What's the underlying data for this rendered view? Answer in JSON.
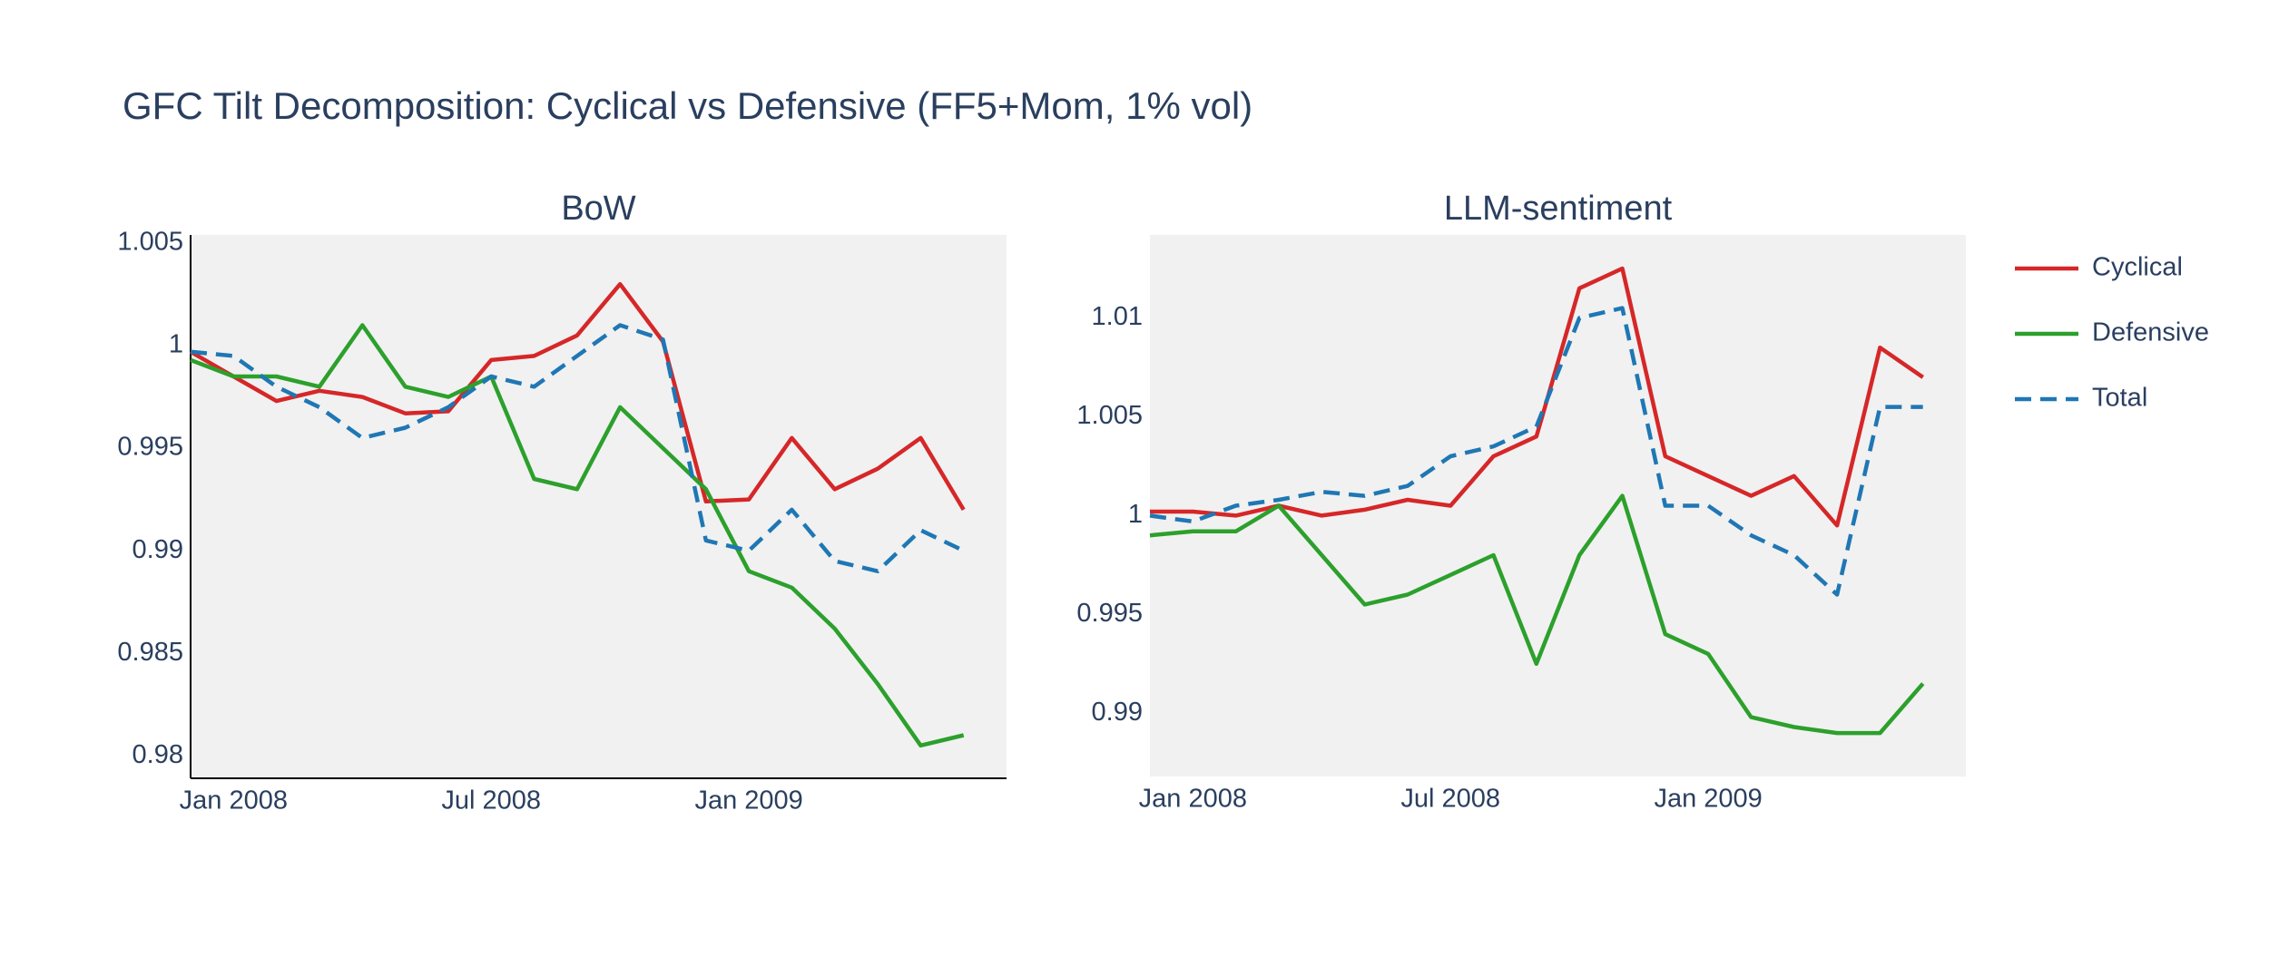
{
  "title": "GFC Tilt Decomposition: Cyclical vs Defensive (FF5+Mom, 1% vol)",
  "chart_data": [
    {
      "type": "line",
      "title": "BoW",
      "legend": "right",
      "axis_lines": true,
      "x": [
        "2007-12",
        "2008-01",
        "2008-02",
        "2008-03",
        "2008-04",
        "2008-05",
        "2008-06",
        "2008-07",
        "2008-08",
        "2008-09",
        "2008-10",
        "2008-11",
        "2008-12",
        "2009-01",
        "2009-02",
        "2009-03",
        "2009-04",
        "2009-05",
        "2009-06"
      ],
      "xlim": [
        "2007-12",
        "2009-07"
      ],
      "xticks": [
        {
          "value": "2008-01",
          "label": "Jan 2008"
        },
        {
          "value": "2008-07",
          "label": "Jul 2008"
        },
        {
          "value": "2009-01",
          "label": "Jan 2009"
        }
      ],
      "ylim": [
        0.9789,
        1.0054
      ],
      "yticks": [
        0.98,
        0.985,
        0.99,
        0.995,
        1,
        1.005
      ],
      "series": [
        {
          "name": "Cyclical",
          "color": "#d62728",
          "values": [
            0.9997,
            0.9985,
            0.9973,
            0.9978,
            0.9975,
            0.9967,
            0.9968,
            0.9993,
            0.9995,
            1.0005,
            1.003,
            1.0002,
            0.9924,
            0.9925,
            0.9955,
            0.993,
            0.994,
            0.9955,
            0.992
          ]
        },
        {
          "name": "Defensive",
          "color": "#2ca02c",
          "values": [
            0.9993,
            0.9985,
            0.9985,
            0.998,
            1.001,
            0.998,
            0.9975,
            0.9985,
            0.9935,
            0.993,
            0.997,
            0.995,
            0.993,
            0.989,
            0.9882,
            0.9862,
            0.9835,
            0.9805,
            0.981
          ]
        },
        {
          "name": "Total",
          "color": "#1f77b4",
          "dash": true,
          "values": [
            0.9997,
            0.9995,
            0.998,
            0.997,
            0.9955,
            0.996,
            0.997,
            0.9985,
            0.998,
            0.9995,
            1.001,
            1.0003,
            0.9905,
            0.99,
            0.992,
            0.9895,
            0.989,
            0.991,
            0.99
          ]
        }
      ]
    },
    {
      "type": "line",
      "title": "LLM-sentiment",
      "x": [
        "2007-12",
        "2008-01",
        "2008-02",
        "2008-03",
        "2008-04",
        "2008-05",
        "2008-06",
        "2008-07",
        "2008-08",
        "2008-09",
        "2008-10",
        "2008-11",
        "2008-12",
        "2009-01",
        "2009-02",
        "2009-03",
        "2009-04",
        "2009-05",
        "2009-06"
      ],
      "xlim": [
        "2007-12",
        "2009-07"
      ],
      "xticks": [
        {
          "value": "2008-01",
          "label": "Jan 2008"
        },
        {
          "value": "2008-07",
          "label": "Jul 2008"
        },
        {
          "value": "2009-01",
          "label": "Jan 2009"
        }
      ],
      "ylim": [
        0.9868,
        1.0142
      ],
      "yticks": [
        0.99,
        0.995,
        1,
        1.005,
        1.01
      ],
      "series": [
        {
          "color": "#d62728",
          "values": [
            1.0002,
            1.0002,
            1.0,
            1.0005,
            1.0,
            1.0003,
            1.0008,
            1.0005,
            1.003,
            1.004,
            1.0115,
            1.0125,
            1.003,
            1.002,
            1.001,
            1.002,
            0.9995,
            1.0085,
            1.007
          ]
        },
        {
          "color": "#2ca02c",
          "values": [
            0.999,
            0.9992,
            0.9992,
            1.0005,
            0.998,
            0.9955,
            0.996,
            0.997,
            0.998,
            0.9925,
            0.998,
            1.001,
            0.994,
            0.993,
            0.9898,
            0.9893,
            0.989,
            0.989,
            0.9915
          ]
        },
        {
          "color": "#1f77b4",
          "dash": true,
          "values": [
            1.0,
            0.9997,
            1.0005,
            1.0008,
            1.0012,
            1.001,
            1.0015,
            1.003,
            1.0035,
            1.0045,
            1.01,
            1.0105,
            1.0005,
            1.0005,
            0.999,
            0.998,
            0.996,
            1.0055,
            1.0055
          ]
        }
      ]
    }
  ]
}
